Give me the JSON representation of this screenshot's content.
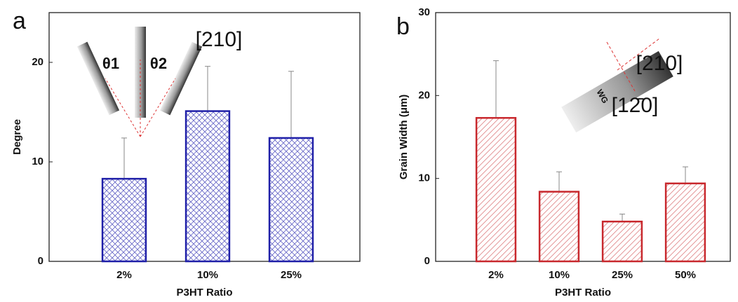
{
  "chart_data": [
    {
      "type": "bar",
      "panel_label": "a",
      "ylabel": "Degree",
      "xlabel": "P3HT Ratio",
      "categories": [
        "2%",
        "10%",
        "25%"
      ],
      "values": [
        8.3,
        15.1,
        12.4
      ],
      "errors": [
        4.1,
        4.5,
        6.7
      ],
      "color": "#1f1fa8",
      "ylim": [
        0,
        25
      ],
      "yticks": [
        0,
        10,
        20
      ],
      "annotations": [
        "[210]",
        "θ1",
        "θ2"
      ]
    },
    {
      "type": "bar",
      "panel_label": "b",
      "ylabel": "Grain Width (μm)",
      "xlabel": "P3HT Ratio",
      "categories": [
        "2%",
        "10%",
        "25%",
        "50%"
      ],
      "values": [
        17.3,
        8.4,
        4.8,
        9.4
      ],
      "errors": [
        6.9,
        2.4,
        0.9,
        2.0
      ],
      "color": "#c8282d",
      "ylim": [
        0,
        30
      ],
      "yticks": [
        0,
        10,
        20,
        30
      ],
      "annotations": [
        "[210]",
        "[12̄0]",
        "WG"
      ]
    }
  ]
}
